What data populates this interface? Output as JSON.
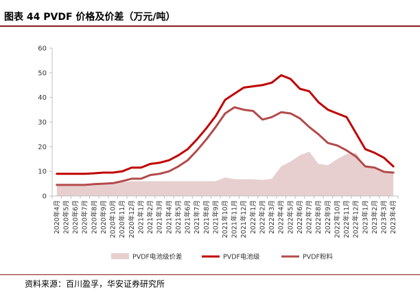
{
  "header": {
    "title": "图表 44 PVDF 价格及价差（万元/吨）"
  },
  "footer": {
    "source": "资料来源：百川盈孚，华安证券研究所"
  },
  "colors": {
    "battery_grade": "#c00000",
    "powder": "#b34a4a",
    "spread_fill": "#e8cfcf",
    "rule": "#8b1a1a"
  },
  "chart_data": {
    "type": "line",
    "title": "",
    "xlabel": "",
    "ylabel": "",
    "ylim": [
      0,
      60
    ],
    "yticks": [
      0,
      10,
      20,
      30,
      40,
      50,
      60
    ],
    "grid": false,
    "legend_position": "bottom",
    "categories": [
      "2020年4月",
      "2020年5月",
      "2020年6月",
      "2020年7月",
      "2020年8月",
      "2020年9月",
      "2020年10月",
      "2020年11月",
      "2020年12月",
      "2021年1月",
      "2021年2月",
      "2021年3月",
      "2021年4月",
      "2021年5月",
      "2021年6月",
      "2021年7月",
      "2021年8月",
      "2021年9月",
      "2021年10月",
      "2021年11月",
      "2021年12月",
      "2022年1月",
      "2022年2月",
      "2022年3月",
      "2022年4月",
      "2022年5月",
      "2022年6月",
      "2022年7月",
      "2022年8月",
      "2022年9月",
      "2022年10月",
      "2022年11月",
      "2022年12月",
      "2023年1月",
      "2023年2月",
      "2023年3月",
      "2023年4月"
    ],
    "series": [
      {
        "name": "PVDF电池级价差",
        "kind": "area",
        "color": "#e8cfcf",
        "values": [
          4.5,
          4.5,
          4.5,
          4.5,
          4.6,
          4.7,
          4.8,
          5.5,
          6.0,
          6.0,
          6.0,
          6.0,
          6.0,
          6.0,
          6.0,
          6.0,
          6.0,
          6.0,
          7.5,
          6.8,
          6.8,
          6.8,
          6.5,
          7.0,
          12.0,
          14.0,
          16.5,
          18.0,
          13.0,
          12.5,
          15.0,
          17.0,
          17.5,
          12.0,
          11.5,
          10.0,
          9.5
        ]
      },
      {
        "name": "PVDF电池级",
        "kind": "line",
        "color": "#c00000",
        "values": [
          9.0,
          9.0,
          9.0,
          9.0,
          9.2,
          9.5,
          9.5,
          10.0,
          11.5,
          11.5,
          13.0,
          13.5,
          14.5,
          16.5,
          19.0,
          23.0,
          27.5,
          32.5,
          39.0,
          41.5,
          44.0,
          44.5,
          45.0,
          46.0,
          49.0,
          47.5,
          43.5,
          42.5,
          38.0,
          35.0,
          33.5,
          32.0,
          25.5,
          19.0,
          17.5,
          15.5,
          12.0
        ]
      },
      {
        "name": "PVDF粉料",
        "kind": "line",
        "color": "#b34a4a",
        "values": [
          4.5,
          4.5,
          4.5,
          4.5,
          4.8,
          5.0,
          5.2,
          6.0,
          7.0,
          7.0,
          8.5,
          9.0,
          10.0,
          12.0,
          14.5,
          18.5,
          23.0,
          28.0,
          33.5,
          36.0,
          35.0,
          34.5,
          31.0,
          32.0,
          34.0,
          33.5,
          31.5,
          28.0,
          25.0,
          21.5,
          20.5,
          18.5,
          16.0,
          12.0,
          11.5,
          9.8,
          9.5
        ]
      }
    ]
  }
}
